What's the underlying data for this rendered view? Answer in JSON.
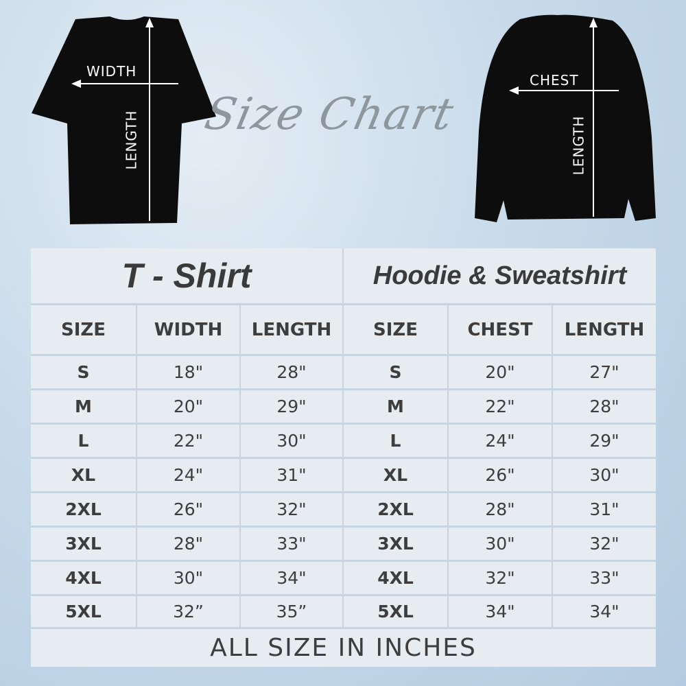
{
  "title": "Size Chart",
  "tshirt_image": {
    "width_label": "WIDTH",
    "length_label": "LENGTH"
  },
  "sweatshirt_image": {
    "chest_label": "CHEST",
    "length_label": "LENGTH"
  },
  "tshirt": {
    "heading": "T - Shirt",
    "columns": [
      "SIZE",
      "WIDTH",
      "LENGTH"
    ],
    "rows": [
      [
        "S",
        "18\"",
        "28\""
      ],
      [
        "M",
        "20\"",
        "29\""
      ],
      [
        "L",
        "22\"",
        "30\""
      ],
      [
        "XL",
        "24\"",
        "31\""
      ],
      [
        "2XL",
        "26\"",
        "32\""
      ],
      [
        "3XL",
        "28\"",
        "33\""
      ],
      [
        "4XL",
        "30\"",
        "34\""
      ],
      [
        "5XL",
        "32”",
        "35”"
      ]
    ]
  },
  "hoodie": {
    "heading": "Hoodie & Sweatshirt",
    "columns": [
      "SIZE",
      "CHEST",
      "LENGTH"
    ],
    "rows": [
      [
        "S",
        "20\"",
        "27\""
      ],
      [
        "M",
        "22\"",
        "28\""
      ],
      [
        "L",
        "24\"",
        "29\""
      ],
      [
        "XL",
        "26\"",
        "30\""
      ],
      [
        "2XL",
        "28\"",
        "31\""
      ],
      [
        "3XL",
        "30\"",
        "32\""
      ],
      [
        "4XL",
        "32\"",
        "33\""
      ],
      [
        "5XL",
        "34\"",
        "34\""
      ]
    ]
  },
  "footer": "ALL SIZE IN INCHES",
  "colors": {
    "cell": "#e7ecf1",
    "border": "#c8d4e0",
    "text": "#3d3d3d",
    "garment": "#0d0d0d"
  }
}
